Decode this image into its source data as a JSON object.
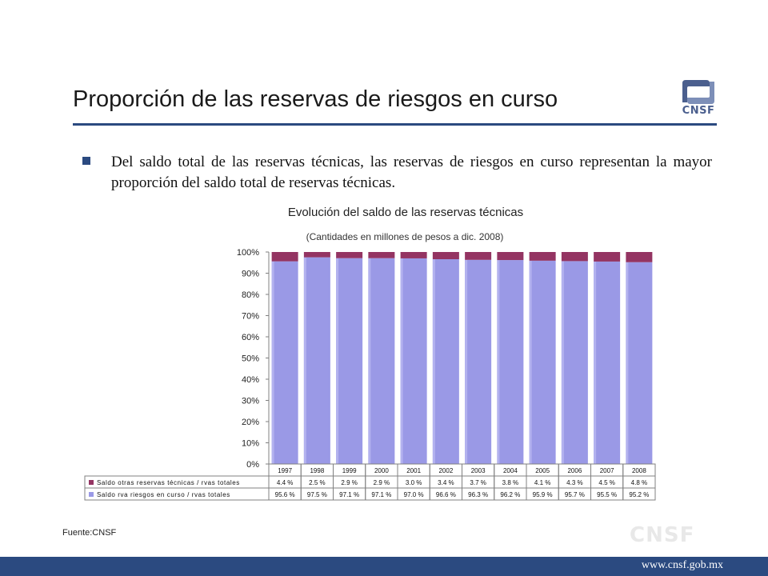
{
  "slide": {
    "title": "Proporción de las reservas de riesgos en curso",
    "bullet": "Del saldo total de las reservas técnicas, las reservas de riesgos en curso representan la mayor proporción del saldo total de reservas técnicas.",
    "source": "Fuente:CNSF",
    "logo_text": "CNSF",
    "watermark": "CNSF",
    "footer_url": "www.cnsf.gob.mx"
  },
  "colors": {
    "brand": "#2b4a80",
    "series_otras": "#943462",
    "series_riesgos": "#9a99e6"
  },
  "chart_data": {
    "type": "bar",
    "stacked": true,
    "title": "Evolución del saldo de las reservas técnicas",
    "subtitle": "(Cantidades en millones de pesos a dic. 2008)",
    "categories": [
      "1997",
      "1998",
      "1999",
      "2000",
      "2001",
      "2002",
      "2003",
      "2004",
      "2005",
      "2006",
      "2007",
      "2008"
    ],
    "ylim": [
      0,
      100
    ],
    "yticks": [
      "0%",
      "10%",
      "20%",
      "30%",
      "40%",
      "50%",
      "60%",
      "70%",
      "80%",
      "90%",
      "100%"
    ],
    "grid": false,
    "legend": "data-table",
    "series": [
      {
        "name": "Saldo otras reservas técnicas / rvas totales",
        "values": [
          4.4,
          2.5,
          2.9,
          2.9,
          3.0,
          3.4,
          3.7,
          3.8,
          4.1,
          4.3,
          4.5,
          4.8
        ],
        "labels": [
          "4.4 %",
          "2.5 %",
          "2.9 %",
          "2.9 %",
          "3.0 %",
          "3.4 %",
          "3.7 %",
          "3.8 %",
          "4.1 %",
          "4.3 %",
          "4.5 %",
          "4.8 %"
        ]
      },
      {
        "name": "Saldo rva riesgos en curso / rvas totales",
        "values": [
          95.6,
          97.5,
          97.1,
          97.1,
          97.0,
          96.6,
          96.3,
          96.2,
          95.9,
          95.7,
          95.5,
          95.2
        ],
        "labels": [
          "95.6 %",
          "97.5 %",
          "97.1 %",
          "97.1 %",
          "97.0 %",
          "96.6 %",
          "96.3 %",
          "96.2 %",
          "95.9 %",
          "95.7 %",
          "95.5 %",
          "95.2 %"
        ]
      }
    ]
  }
}
